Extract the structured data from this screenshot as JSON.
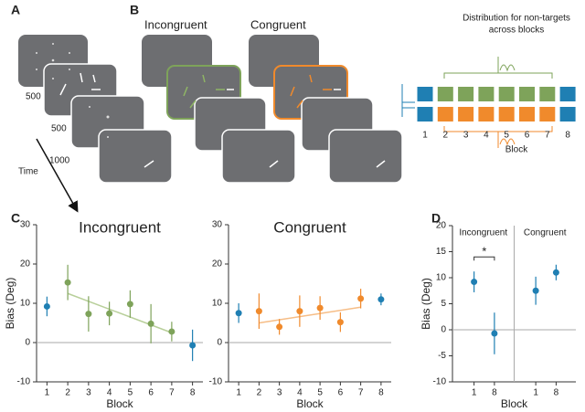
{
  "panels": {
    "a": "A",
    "b": "B",
    "c": "C",
    "d": "D"
  },
  "timeline": {
    "durations": [
      "500",
      "500",
      "1000"
    ],
    "axis_label": "Time"
  },
  "conditions": {
    "incongruent": "Incongruent",
    "congruent": "Congruent"
  },
  "distribution": {
    "title_lines": [
      "Distribution for non-targets",
      "across blocks"
    ],
    "blocks": [
      "1",
      "2",
      "3",
      "4",
      "5",
      "6",
      "7",
      "8"
    ],
    "axis_label": "Block"
  },
  "chart_data": [
    {
      "type": "errorbar",
      "title": "Incongruent",
      "xlabel": "Block",
      "ylabel": "Bias (Deg)",
      "x": [
        1,
        2,
        3,
        4,
        5,
        6,
        7,
        8
      ],
      "xlim": [
        0.5,
        8.5
      ],
      "xticks": [
        1,
        2,
        3,
        4,
        5,
        6,
        7,
        8
      ],
      "ylim": [
        -10,
        30
      ],
      "yticks": [
        -10,
        0,
        10,
        20,
        30
      ],
      "reference_line": 0,
      "series": [
        {
          "color": "#1f7fb3",
          "values": [
            9.2,
            null,
            null,
            null,
            null,
            null,
            null,
            -0.7
          ],
          "errors": [
            2.5,
            null,
            null,
            null,
            null,
            null,
            null,
            4
          ]
        },
        {
          "color": "#7ea35a",
          "values": [
            null,
            15.3,
            7.3,
            7.4,
            9.8,
            4.8,
            2.8,
            null
          ],
          "errors": [
            null,
            4.5,
            4.5,
            3,
            3.5,
            5,
            2.5,
            null
          ]
        }
      ],
      "trend": {
        "x": [
          2,
          7
        ],
        "values": [
          12.5,
          2.5
        ],
        "color": "#b8cf9a"
      }
    },
    {
      "type": "errorbar",
      "title": "Congruent",
      "xlabel": "Block",
      "x": [
        1,
        2,
        3,
        4,
        5,
        6,
        7,
        8
      ],
      "xlim": [
        0.5,
        8.5
      ],
      "xticks": [
        1,
        2,
        3,
        4,
        5,
        6,
        7,
        8
      ],
      "ylim": [
        -10,
        30
      ],
      "yticks": [
        -10,
        0,
        10,
        20,
        30
      ],
      "reference_line": 0,
      "series": [
        {
          "color": "#1f7fb3",
          "values": [
            7.5,
            null,
            null,
            null,
            null,
            null,
            null,
            11.0
          ],
          "errors": [
            2.5,
            null,
            null,
            null,
            null,
            null,
            null,
            1.5
          ]
        },
        {
          "color": "#f08a2c",
          "values": [
            null,
            8.0,
            4.0,
            8.0,
            8.8,
            5.2,
            11.2,
            null
          ],
          "errors": [
            null,
            4.5,
            2,
            4,
            3,
            2.5,
            2.5,
            null
          ]
        }
      ],
      "trend": {
        "x": [
          2,
          7
        ],
        "values": [
          5.0,
          9.0
        ],
        "color": "#f6bd86"
      }
    },
    {
      "type": "errorbar",
      "xlabel": "Block",
      "ylabel": "Bias (Deg)",
      "categories": [
        "1",
        "8",
        "1",
        "8"
      ],
      "groups": [
        {
          "label": "Incongruent",
          "color": "#6aa84f"
        },
        {
          "label": "Congruent",
          "color": "#f08a2c"
        }
      ],
      "ylim": [
        -10,
        20
      ],
      "yticks": [
        -10,
        -5,
        0,
        5,
        10,
        15,
        20
      ],
      "reference_line": 0,
      "series": [
        {
          "color": "#1f7fb3",
          "values": [
            9.2,
            -0.7,
            7.5,
            11.0
          ],
          "errors": [
            2,
            4,
            2.7,
            1.5
          ]
        }
      ],
      "annotation": {
        "text": "*"
      }
    }
  ]
}
